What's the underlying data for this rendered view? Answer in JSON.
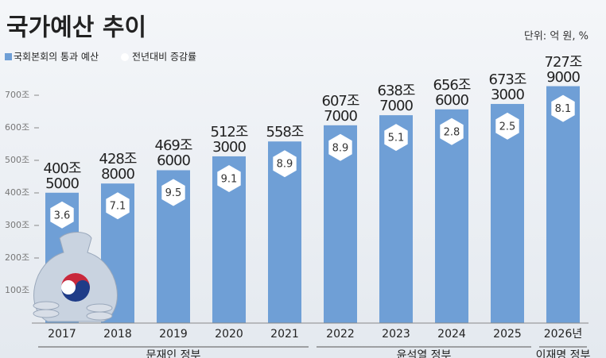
{
  "chart_data": {
    "type": "bar",
    "title": "국가예산 추이",
    "unit_note": "단위: 억 원, %",
    "categories": [
      "2017",
      "2018",
      "2019",
      "2020",
      "2021",
      "2022",
      "2023",
      "2024",
      "2025",
      "2026년"
    ],
    "series": [
      {
        "name": "국회본회의 통과 예산",
        "color": "#6f9fd6",
        "values": [
          400.5,
          428.8,
          469.6,
          512.3,
          558,
          607.7,
          638.7,
          656.6,
          673.3,
          727.9
        ],
        "value_labels": [
          "400조\n5000",
          "428조\n8000",
          "469조\n6000",
          "512조\n3000",
          "558조",
          "607조\n7000",
          "638조\n7000",
          "656조\n6000",
          "673조\n3000",
          "727조\n9000"
        ]
      },
      {
        "name": "전년대비 증감률",
        "color": "#ffffff",
        "values": [
          3.6,
          7.1,
          9.5,
          9.1,
          8.9,
          8.9,
          5.1,
          2.8,
          2.5,
          8.1
        ]
      }
    ],
    "ylim": [
      0,
      750
    ],
    "yticks": [
      {
        "value": 100,
        "label": "100조"
      },
      {
        "value": 200,
        "label": "200조"
      },
      {
        "value": 300,
        "label": "300조"
      },
      {
        "value": 400,
        "label": "400조"
      },
      {
        "value": 500,
        "label": "500조"
      },
      {
        "value": 600,
        "label": "600조"
      },
      {
        "value": 700,
        "label": "700조"
      }
    ],
    "periods": [
      {
        "label": "문재인 정부",
        "from": 0,
        "to": 4
      },
      {
        "label": "윤석열 정부",
        "from": 5,
        "to": 8
      },
      {
        "label": "이재명 정부",
        "from": 9,
        "to": 9
      }
    ]
  }
}
